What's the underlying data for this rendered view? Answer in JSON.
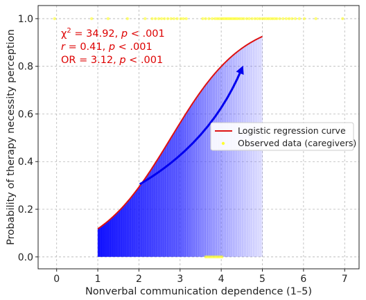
{
  "chart_data": {
    "type": "line",
    "xlabel": "Nonverbal communication dependence (1–5)",
    "ylabel": "Probability of therapy necessity perception",
    "xlim": [
      -0.45,
      7.35
    ],
    "ylim": [
      -0.05,
      1.055
    ],
    "x_ticks": [
      0,
      1,
      2,
      3,
      4,
      5,
      6,
      7
    ],
    "x_tick_labels": [
      "0",
      "1",
      "2",
      "3",
      "4",
      "5",
      "6",
      "7"
    ],
    "y_ticks": [
      0.0,
      0.2,
      0.4,
      0.6,
      0.8,
      1.0
    ],
    "y_tick_labels": [
      "0.0",
      "0.2",
      "0.4",
      "0.6",
      "0.8",
      "1.0"
    ],
    "grid": true,
    "legend_position": "center-right",
    "annotations": [
      {
        "chi": "χ",
        "sup": "2",
        "rest": " = 34.92, ",
        "p": "p",
        "tail": " < .001"
      },
      {
        "r": "r",
        "mid": " = 0.41, ",
        "p": "p",
        "tail": " < .001"
      },
      {
        "lead": "OR = 3.12, ",
        "p": "p",
        "tail": " < .001"
      }
    ],
    "annotation_color": "#dd0000",
    "series": [
      {
        "name": "Logistic regression curve",
        "kind": "line",
        "color": "#dd1111",
        "fill": "blue gradient",
        "intercept": -3.146,
        "slope": 1.132,
        "x_range": [
          1,
          5
        ]
      },
      {
        "name": "Observed data (caregivers)",
        "kind": "scatter",
        "color": "#ffff33",
        "points_y1": [
          [
            -0.05,
            1
          ],
          [
            0.85,
            1
          ],
          [
            1.25,
            1
          ],
          [
            1.72,
            1
          ],
          [
            2.15,
            1
          ],
          [
            2.32,
            1
          ],
          [
            2.4,
            1
          ],
          [
            2.48,
            1
          ],
          [
            2.55,
            1
          ],
          [
            2.62,
            1
          ],
          [
            2.7,
            1
          ],
          [
            2.78,
            1
          ],
          [
            2.85,
            1
          ],
          [
            2.93,
            1
          ],
          [
            3.02,
            1
          ],
          [
            3.08,
            1
          ],
          [
            3.15,
            1
          ],
          [
            3.55,
            1
          ],
          [
            3.62,
            1
          ],
          [
            3.7,
            1
          ],
          [
            3.78,
            1
          ],
          [
            3.85,
            1
          ],
          [
            3.9,
            1
          ],
          [
            3.95,
            1
          ],
          [
            4.0,
            1
          ],
          [
            4.04,
            1
          ],
          [
            4.08,
            1
          ],
          [
            4.12,
            1
          ],
          [
            4.16,
            1
          ],
          [
            4.2,
            1
          ],
          [
            4.24,
            1
          ],
          [
            4.28,
            1
          ],
          [
            4.32,
            1
          ],
          [
            4.36,
            1
          ],
          [
            4.4,
            1
          ],
          [
            4.45,
            1
          ],
          [
            4.5,
            1
          ],
          [
            4.55,
            1
          ],
          [
            4.62,
            1
          ],
          [
            4.68,
            1
          ],
          [
            4.75,
            1
          ],
          [
            4.82,
            1
          ],
          [
            4.88,
            1
          ],
          [
            4.94,
            1
          ],
          [
            5.0,
            1
          ],
          [
            5.05,
            1
          ],
          [
            5.1,
            1
          ],
          [
            5.15,
            1
          ],
          [
            5.2,
            1
          ],
          [
            5.25,
            1
          ],
          [
            5.3,
            1
          ],
          [
            5.35,
            1
          ],
          [
            5.42,
            1
          ],
          [
            5.5,
            1
          ],
          [
            5.58,
            1
          ],
          [
            5.65,
            1
          ],
          [
            5.72,
            1
          ],
          [
            5.8,
            1
          ],
          [
            5.9,
            1
          ],
          [
            6.02,
            1
          ],
          [
            6.3,
            1
          ],
          [
            6.95,
            1
          ]
        ],
        "points_y0": [
          [
            3.62,
            0
          ],
          [
            3.66,
            0
          ],
          [
            3.7,
            0
          ],
          [
            3.74,
            0
          ],
          [
            3.78,
            0
          ],
          [
            3.82,
            0
          ],
          [
            3.86,
            0
          ],
          [
            3.9,
            0
          ],
          [
            3.94,
            0
          ],
          [
            3.98,
            0
          ],
          [
            4.02,
            0
          ]
        ]
      }
    ],
    "trend_arrow": {
      "from": [
        2.02,
        0.305
      ],
      "to": [
        4.5,
        0.79
      ],
      "color": "#0000ee"
    }
  }
}
